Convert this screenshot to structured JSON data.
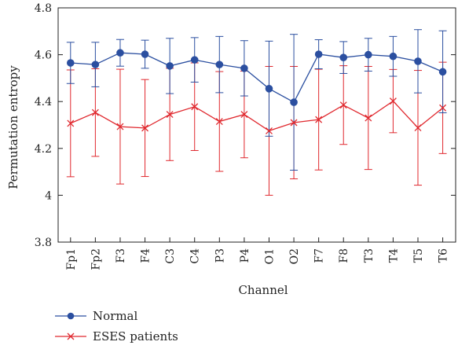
{
  "chart_data": {
    "type": "line",
    "xlabel": "Channel",
    "ylabel": "Permutation entropy",
    "ylim": [
      3.8,
      4.8
    ],
    "yticks": [
      3.8,
      4,
      4.2,
      4.4,
      4.6,
      4.8
    ],
    "ytick_labels": [
      "3.8",
      "4",
      "4.2",
      "4.4",
      "4.6",
      "4.8"
    ],
    "grid": false,
    "legend_position": "bottom-left, below plot",
    "categories": [
      "Fp1",
      "Fp2",
      "F3",
      "F4",
      "C3",
      "C4",
      "P3",
      "P4",
      "O1",
      "O2",
      "F7",
      "F8",
      "T3",
      "T4",
      "T5",
      "T6"
    ],
    "series": [
      {
        "name": "Normal",
        "color": "#2b4fa0",
        "marker": "circle",
        "values": [
          4.565,
          4.558,
          4.608,
          4.602,
          4.552,
          4.578,
          4.558,
          4.542,
          4.455,
          4.397,
          4.602,
          4.588,
          4.6,
          4.593,
          4.572,
          4.527
        ],
        "error": [
          0.088,
          0.095,
          0.057,
          0.06,
          0.118,
          0.095,
          0.12,
          0.118,
          0.203,
          0.29,
          0.062,
          0.068,
          0.07,
          0.085,
          0.135,
          0.175
        ]
      },
      {
        "name": "ESES patients",
        "color": "#e0282e",
        "marker": "x",
        "values": [
          4.307,
          4.353,
          4.293,
          4.287,
          4.345,
          4.378,
          4.315,
          4.345,
          4.275,
          4.31,
          4.323,
          4.385,
          4.33,
          4.402,
          4.288,
          4.373
        ],
        "error": [
          0.228,
          0.187,
          0.245,
          0.207,
          0.197,
          0.187,
          0.213,
          0.185,
          0.275,
          0.24,
          0.215,
          0.168,
          0.22,
          0.135,
          0.245,
          0.195
        ]
      }
    ]
  }
}
